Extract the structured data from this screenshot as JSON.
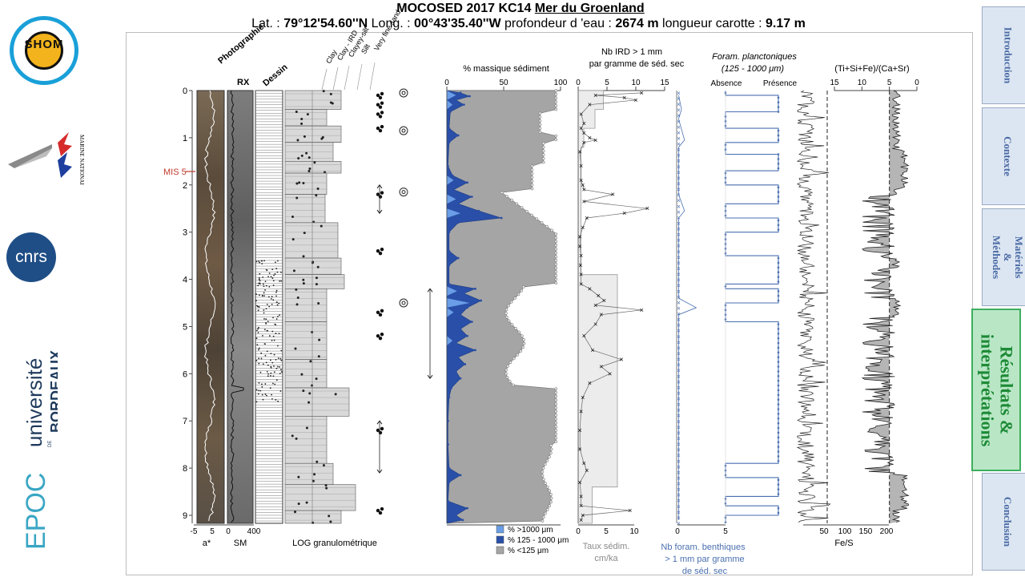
{
  "title": {
    "line1": "MOCOSED 2017 KC14",
    "line1_place": "Mer du Groenland",
    "lat_label": "Lat. :",
    "lat_value": "79°12'54.60''N",
    "long_label": "Long. :",
    "long_value": "00°43'35.40''W",
    "depth_label": "profondeur d 'eau :",
    "depth_value": "2674 m",
    "length_label": "longueur carotte :",
    "length_value": "9.17 m"
  },
  "nav": {
    "tabs": [
      {
        "label": "Introduction",
        "active": false
      },
      {
        "label": "Contexte",
        "active": false
      },
      {
        "label": "Matériels & Méthodes",
        "active": false
      },
      {
        "label": "Résultats & interprétations",
        "active": true
      },
      {
        "label": "Conclusion",
        "active": false
      }
    ]
  },
  "logos": {
    "shom": "SHOM",
    "marine": "MARINE NATIONALE",
    "cnrs": "cnrs",
    "ub_line1": "université",
    "ub_de": "DE",
    "ub_line2": "BORDEAUX",
    "epoc": "EPOC"
  },
  "figure": {
    "headers": {
      "photo": "Photographie",
      "rx": "RX",
      "dessin": "Dessin",
      "grain_classes": [
        "Clay",
        "Clay - IRD",
        "Clayey-silt",
        "Silt",
        "Very fine sand"
      ],
      "mass_pct": "% massique sédiment",
      "ird_line1": "Nb IRD > 1 mm",
      "ird_line2": "par gramme de séd. sec",
      "foram_line1": "Foram. planctoniques",
      "foram_line2": "(125 - 1000 μm)",
      "foram_absence": "Absence",
      "foram_presence": "Présence",
      "xrf": "(Ti+Si+Fe)/(Ca+Sr)"
    },
    "mis_label": "MIS 5",
    "depth_ticks": [
      "0",
      "1",
      "2",
      "3",
      "4",
      "5",
      "6",
      "7",
      "8",
      "9"
    ],
    "bottom": {
      "astar": "a*",
      "sm": "SM",
      "log": "LOG granulométrique",
      "taux_line1": "Taux sédim.",
      "taux_line2": "cm/ka",
      "benth_line1": "Nb foram. benthiques",
      "benth_line2": "> 1 mm par gramme",
      "benth_line3": "de séd. sec",
      "fes": "Fe/S"
    },
    "astar_ticks": [
      "-5",
      "5"
    ],
    "sm_ticks": [
      "0",
      "400"
    ],
    "mass_ticks": [
      "0",
      "50",
      "100"
    ],
    "ird_top_ticks": [
      "0",
      "5",
      "10",
      "15"
    ],
    "rate_ticks": [
      "0",
      "5",
      "10"
    ],
    "benth_ticks": [
      "0",
      "5"
    ],
    "xrf_ticks": [
      "15",
      "10",
      "5",
      "0"
    ],
    "fes_ticks": [
      "50",
      "100",
      "150",
      "200"
    ],
    "legend": [
      {
        "label": "% >1000 μm",
        "color": "#6a9ee6"
      },
      {
        "label": "% 125 - 1000 μm",
        "color": "#2a4fa8"
      },
      {
        "label": "% <125 μm",
        "color": "#a5a5a5"
      }
    ],
    "colors": {
      "coarse": "#6a9ee6",
      "medium": "#2a4fa8",
      "fine": "#a5a5a5",
      "foram": "#4a6fb0",
      "mis": "#c0392b"
    },
    "series": {
      "coarse_pct": [
        [
          0.1,
          8
        ],
        [
          0.3,
          5
        ],
        [
          1.9,
          6
        ],
        [
          2.3,
          8
        ],
        [
          2.6,
          12
        ],
        [
          4.25,
          9
        ],
        [
          4.5,
          20
        ],
        [
          4.7,
          6
        ],
        [
          5.3,
          5
        ]
      ],
      "medium_pct": [
        [
          0.05,
          12
        ],
        [
          0.12,
          20
        ],
        [
          0.2,
          8
        ],
        [
          0.3,
          15
        ],
        [
          0.45,
          3
        ],
        [
          0.8,
          2
        ],
        [
          0.95,
          10
        ],
        [
          1.1,
          2
        ],
        [
          1.6,
          1
        ],
        [
          1.8,
          5
        ],
        [
          1.95,
          18
        ],
        [
          2.1,
          6
        ],
        [
          2.25,
          22
        ],
        [
          2.4,
          10
        ],
        [
          2.55,
          28
        ],
        [
          2.7,
          48
        ],
        [
          2.8,
          10
        ],
        [
          3.0,
          2
        ],
        [
          3.4,
          2
        ],
        [
          3.55,
          10
        ],
        [
          3.7,
          2
        ],
        [
          4.1,
          2
        ],
        [
          4.2,
          25
        ],
        [
          4.3,
          15
        ],
        [
          4.45,
          30
        ],
        [
          4.6,
          18
        ],
        [
          4.75,
          12
        ],
        [
          4.9,
          22
        ],
        [
          5.05,
          12
        ],
        [
          5.2,
          18
        ],
        [
          5.35,
          8
        ],
        [
          5.5,
          25
        ],
        [
          5.65,
          10
        ],
        [
          5.8,
          16
        ],
        [
          5.95,
          8
        ],
        [
          6.1,
          12
        ],
        [
          6.3,
          4
        ],
        [
          6.5,
          2
        ],
        [
          7.0,
          1
        ],
        [
          7.5,
          1
        ],
        [
          8.0,
          2
        ],
        [
          8.15,
          12
        ],
        [
          8.3,
          2
        ],
        [
          8.7,
          1
        ],
        [
          8.85,
          18
        ],
        [
          9.0,
          8
        ],
        [
          9.1,
          14
        ]
      ],
      "ird": [
        [
          0.05,
          11
        ],
        [
          0.1,
          3
        ],
        [
          0.15,
          8
        ],
        [
          0.2,
          10
        ],
        [
          0.3,
          2
        ],
        [
          0.5,
          0.5
        ],
        [
          0.7,
          1
        ],
        [
          0.8,
          0.5
        ],
        [
          0.9,
          1
        ],
        [
          1.0,
          2
        ],
        [
          1.05,
          3
        ],
        [
          1.1,
          1
        ],
        [
          1.3,
          0.3
        ],
        [
          1.6,
          0.5
        ],
        [
          1.9,
          0.5
        ],
        [
          2.0,
          0.8
        ],
        [
          2.1,
          1
        ],
        [
          2.2,
          6
        ],
        [
          2.35,
          1
        ],
        [
          2.5,
          12
        ],
        [
          2.6,
          8
        ],
        [
          2.7,
          1.5
        ],
        [
          2.9,
          0.8
        ],
        [
          3.1,
          0.3
        ],
        [
          3.3,
          0.3
        ],
        [
          3.5,
          0.5
        ],
        [
          3.7,
          0.4
        ],
        [
          3.9,
          0.5
        ],
        [
          4.1,
          0.5
        ],
        [
          4.2,
          2
        ],
        [
          4.35,
          3.5
        ],
        [
          4.45,
          4.5
        ],
        [
          4.55,
          3
        ],
        [
          4.65,
          11
        ],
        [
          4.75,
          4
        ],
        [
          4.95,
          3
        ],
        [
          5.2,
          1
        ],
        [
          5.5,
          2.5
        ],
        [
          5.7,
          7.5
        ],
        [
          5.85,
          4
        ],
        [
          6.0,
          5.5
        ],
        [
          6.2,
          2
        ],
        [
          6.5,
          0.8
        ],
        [
          6.8,
          0.5
        ],
        [
          7.2,
          0.3
        ],
        [
          7.6,
          0.3
        ],
        [
          7.9,
          1
        ],
        [
          8.05,
          1.5
        ],
        [
          8.3,
          0.3
        ],
        [
          8.6,
          0.5
        ],
        [
          8.8,
          0.5
        ],
        [
          8.9,
          9
        ],
        [
          9.0,
          0.8
        ],
        [
          9.1,
          0.5
        ]
      ],
      "rate_steps": [
        [
          0,
          4.5
        ],
        [
          0.4,
          4.5
        ],
        [
          0.4,
          3
        ],
        [
          0.8,
          3
        ],
        [
          0.8,
          1
        ],
        [
          1.2,
          1
        ],
        [
          1.2,
          0.5
        ],
        [
          3.9,
          0.5
        ],
        [
          3.9,
          7
        ],
        [
          8.4,
          7
        ],
        [
          8.4,
          2.5
        ],
        [
          9.17,
          2.5
        ]
      ],
      "benth": [
        [
          0.1,
          0.2
        ],
        [
          0.4,
          0.5
        ],
        [
          0.6,
          0.2
        ],
        [
          1.05,
          0.8
        ],
        [
          1.2,
          0.2
        ],
        [
          2.2,
          0.2
        ],
        [
          2.55,
          0.8
        ],
        [
          2.7,
          0.2
        ],
        [
          4.4,
          0.2
        ],
        [
          4.6,
          2
        ],
        [
          4.75,
          0.2
        ],
        [
          9.1,
          0.2
        ]
      ],
      "foram_presence_switches": [
        0.1,
        0.45,
        0.8,
        1.1,
        1.35,
        1.7,
        2.0,
        2.4,
        2.7,
        3.0,
        3.5,
        4.1,
        4.2,
        4.5,
        4.9,
        7.9,
        8.2,
        8.6,
        8.8,
        9.0
      ]
    }
  }
}
